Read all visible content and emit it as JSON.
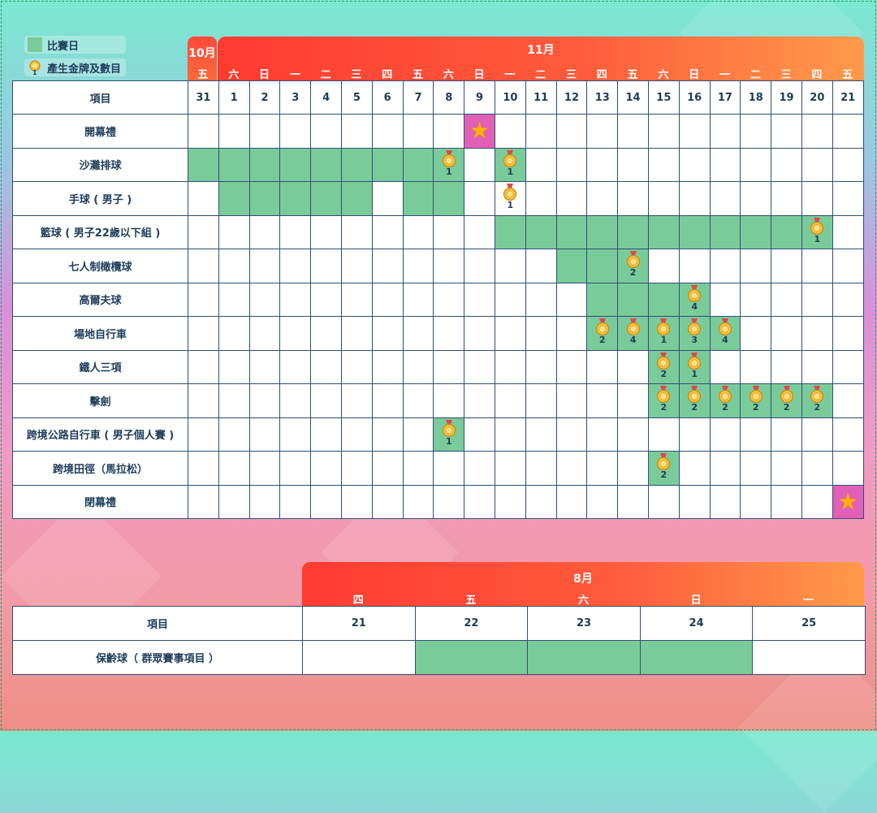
{
  "legend": {
    "competition_day": "比賽日",
    "medal_events": "產生金牌及數目",
    "medal_icon_number": "1"
  },
  "november_block": {
    "oct_label": "10月",
    "nov_label": "11月",
    "weekdays": [
      "五",
      "六",
      "日",
      "一",
      "二",
      "三",
      "四",
      "五",
      "六",
      "日",
      "一",
      "二",
      "三",
      "四",
      "五",
      "六",
      "日",
      "一",
      "二",
      "三",
      "四",
      "五"
    ],
    "header_label": "項目",
    "dates": [
      "31",
      "1",
      "2",
      "3",
      "4",
      "5",
      "6",
      "7",
      "8",
      "9",
      "10",
      "11",
      "12",
      "13",
      "14",
      "15",
      "16",
      "17",
      "18",
      "19",
      "20",
      "21"
    ],
    "rows": [
      {
        "label": "開幕禮",
        "cells": {
          "9": "star"
        }
      },
      {
        "label": "沙灘排球",
        "green": [
          0,
          1,
          2,
          3,
          4,
          5,
          6,
          7,
          8,
          10
        ],
        "medals": {
          "8": "1",
          "10": "1"
        }
      },
      {
        "label": "手球 ( 男子 )",
        "green": [
          1,
          2,
          3,
          4,
          5,
          7,
          8
        ],
        "medals": {
          "10": "1"
        }
      },
      {
        "label": "籃球 ( 男子22歲以下組 )",
        "green": [
          10,
          11,
          12,
          13,
          14,
          15,
          16,
          17,
          18,
          19,
          20
        ],
        "medals": {
          "20": "1"
        }
      },
      {
        "label": "七人制橄欖球",
        "green": [
          12,
          13,
          14
        ],
        "medals": {
          "14": "2"
        }
      },
      {
        "label": "高爾夫球",
        "green": [
          13,
          14,
          15,
          16
        ],
        "medals": {
          "16": "4"
        }
      },
      {
        "label": "場地自行車",
        "green": [
          13,
          14,
          15,
          16,
          17
        ],
        "medals": {
          "13": "2",
          "14": "4",
          "15": "1",
          "16": "3",
          "17": "4"
        }
      },
      {
        "label": "鐵人三項",
        "green": [
          15,
          16
        ],
        "medals": {
          "15": "2",
          "16": "1"
        }
      },
      {
        "label": "擊劍",
        "green": [
          15,
          16,
          17,
          18,
          19,
          20
        ],
        "medals": {
          "15": "2",
          "16": "2",
          "17": "2",
          "18": "2",
          "19": "2",
          "20": "2"
        }
      },
      {
        "label": "跨境公路自行車 ( 男子個人賽 )",
        "green": [
          8
        ],
        "medals": {
          "8": "1"
        }
      },
      {
        "label": "跨境田徑（馬拉松）",
        "green": [
          15
        ],
        "medals": {
          "15": "2"
        }
      },
      {
        "label": "閉幕禮",
        "cells": {
          "21": "star"
        }
      }
    ]
  },
  "august_block": {
    "month_label": "8月",
    "weekdays": [
      "四",
      "五",
      "六",
      "日",
      "一"
    ],
    "header_label": "項目",
    "dates": [
      "21",
      "22",
      "23",
      "24",
      "25"
    ],
    "rows": [
      {
        "label": "保齡球（ 群眾賽事項目 ）",
        "green": [
          1,
          2,
          3
        ]
      }
    ]
  },
  "colors": {
    "green": "#7acb9a",
    "pink": "#e25fb7",
    "border": "#2e4f79",
    "text": "#1e3c5a",
    "bar_start": "#ff3b30",
    "bar_end": "#ff9a4a"
  }
}
